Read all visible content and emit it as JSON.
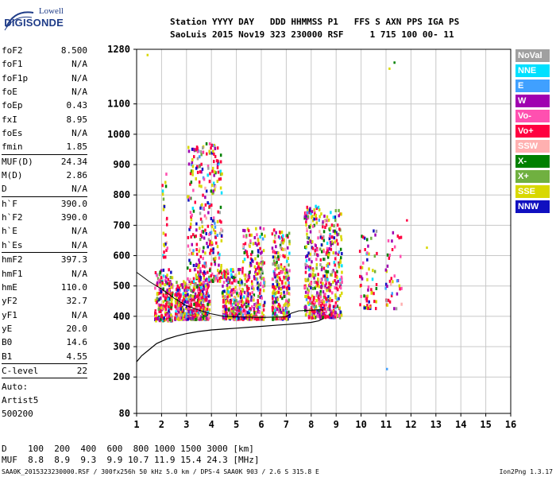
{
  "logo": {
    "brand_top": "Lowell",
    "brand_main": "DIGISONDE"
  },
  "header": {
    "line1": "Station YYYY DAY   DDD HHMMSS P1   FFS S AXN PPS IGA PS",
    "line2": "SaoLuis 2015 Nov19 323 230000 RSF     1 715 100 00- 11"
  },
  "parameters": [
    {
      "label": "foF2",
      "value": "8.500"
    },
    {
      "label": "foF1",
      "value": "N/A"
    },
    {
      "label": "foF1p",
      "value": "N/A"
    },
    {
      "label": "foE",
      "value": "N/A"
    },
    {
      "label": "foEp",
      "value": "0.43"
    },
    {
      "label": "fxI",
      "value": "8.95"
    },
    {
      "label": "foEs",
      "value": "N/A"
    },
    {
      "label": "fmin",
      "value": "1.85"
    },
    {
      "sep": true
    },
    {
      "label": "MUF(D)",
      "value": "24.34"
    },
    {
      "label": "M(D)",
      "value": "2.86"
    },
    {
      "label": "D",
      "value": "N/A"
    },
    {
      "sep": true
    },
    {
      "label": "h`F",
      "value": "390.0"
    },
    {
      "label": "h`F2",
      "value": "390.0"
    },
    {
      "label": "h`E",
      "value": "N/A"
    },
    {
      "label": "h`Es",
      "value": "N/A"
    },
    {
      "sep": true
    },
    {
      "label": "hmF2",
      "value": "397.3"
    },
    {
      "label": "hmF1",
      "value": "N/A"
    },
    {
      "label": "hmE",
      "value": "110.0"
    },
    {
      "label": "yF2",
      "value": "32.7"
    },
    {
      "label": "yF1",
      "value": "N/A"
    },
    {
      "label": "yE",
      "value": "20.0"
    },
    {
      "label": "B0",
      "value": "14.6"
    },
    {
      "label": "B1",
      "value": "4.55"
    },
    {
      "sep": true
    },
    {
      "label": "C-level",
      "value": "22"
    },
    {
      "sep": true
    }
  ],
  "autoscaling": {
    "line1": "Auto:",
    "line2": "Artist5",
    "line3": "500200"
  },
  "legend": [
    {
      "name": "NoVal",
      "color": "#a0a0a0"
    },
    {
      "name": "NNE",
      "color": "#00e0ff"
    },
    {
      "name": "E",
      "color": "#40a0ff"
    },
    {
      "name": "W",
      "color": "#a000b0"
    },
    {
      "name": "Vo-",
      "color": "#ff50b0"
    },
    {
      "name": "Vo+",
      "color": "#ff0040"
    },
    {
      "name": "SSW",
      "color": "#ffb0b0"
    },
    {
      "name": "X-",
      "color": "#008000"
    },
    {
      "name": "X+",
      "color": "#70b040"
    },
    {
      "name": "SSE",
      "color": "#d8d800"
    },
    {
      "name": "NNW",
      "color": "#1010c0"
    }
  ],
  "distance_table": {
    "line1": "D    100  200  400  600  800 1000 1500 3000 [km]",
    "line2": "MUF  8.8  8.9  9.3  9.9 10.7 11.9 15.4 24.3 [MHz]"
  },
  "footer": {
    "left": "SAA0K_2015323230000.RSF / 300fx256h 50 kHz 5.0 km / DPS-4 SAA0K 903 / 2.6 S 315.8 E",
    "right": "Ion2Png 1.3.17"
  },
  "chart_data": {
    "type": "scatter",
    "xlim": [
      1,
      16
    ],
    "ylim": [
      80,
      1280
    ],
    "x_ticks": [
      1,
      2,
      3,
      4,
      5,
      6,
      7,
      8,
      9,
      10,
      11,
      12,
      13,
      14,
      15,
      16
    ],
    "y_ticks": [
      80,
      200,
      300,
      400,
      500,
      600,
      700,
      800,
      900,
      1000,
      1100,
      1280
    ],
    "grid": true,
    "profile": {
      "x": [
        1.0,
        1.2,
        1.5,
        1.8,
        2.2,
        2.6,
        3.0,
        3.5,
        4.0,
        4.5,
        5.0,
        5.5,
        6.0,
        6.5,
        7.0,
        7.5,
        8.0,
        8.3,
        8.5
      ],
      "y": [
        250,
        270,
        290,
        310,
        325,
        335,
        343,
        350,
        355,
        358,
        361,
        364,
        367,
        370,
        373,
        376,
        380,
        385,
        393
      ]
    },
    "trace": {
      "x": [
        1.0,
        1.5,
        2.0,
        2.5,
        3.0,
        3.5,
        4.0,
        4.5,
        5.0,
        5.5,
        6.0,
        6.5,
        7.0,
        7.2,
        7.5,
        8.0,
        8.3,
        8.5
      ],
      "y": [
        545,
        515,
        490,
        460,
        435,
        420,
        408,
        400,
        398,
        397,
        396,
        397,
        398,
        410,
        418,
        420,
        422,
        420
      ]
    },
    "clusters": [
      {
        "x": [
          1.7,
          2.4
        ],
        "y": [
          390,
          560
        ],
        "n": 220
      },
      {
        "x": [
          2.5,
          3.9
        ],
        "y": [
          395,
          520
        ],
        "n": 460
      },
      {
        "x": [
          3.0,
          4.4
        ],
        "y": [
          520,
          980
        ],
        "n": 320
      },
      {
        "x": [
          4.4,
          5.2
        ],
        "y": [
          395,
          560
        ],
        "n": 260
      },
      {
        "x": [
          5.2,
          6.1
        ],
        "y": [
          395,
          700
        ],
        "n": 260
      },
      {
        "x": [
          6.4,
          7.1
        ],
        "y": [
          395,
          700
        ],
        "n": 260
      },
      {
        "x": [
          7.7,
          8.4
        ],
        "y": [
          400,
          770
        ],
        "n": 260
      },
      {
        "x": [
          8.4,
          9.2
        ],
        "y": [
          400,
          760
        ],
        "n": 260
      },
      {
        "x": [
          9.9,
          10.6
        ],
        "y": [
          430,
          700
        ],
        "n": 60
      },
      {
        "x": [
          10.9,
          11.6
        ],
        "y": [
          430,
          690
        ],
        "n": 40
      },
      {
        "x": [
          2.0,
          2.2
        ],
        "y": [
          600,
          900
        ],
        "n": 25
      }
    ],
    "isolated_points": [
      {
        "x": 1.4,
        "y": 1265
      },
      {
        "x": 11.3,
        "y": 1240
      },
      {
        "x": 11.1,
        "y": 1220
      },
      {
        "x": 11.0,
        "y": 230
      },
      {
        "x": 12.6,
        "y": 630
      },
      {
        "x": 11.8,
        "y": 720
      }
    ]
  }
}
